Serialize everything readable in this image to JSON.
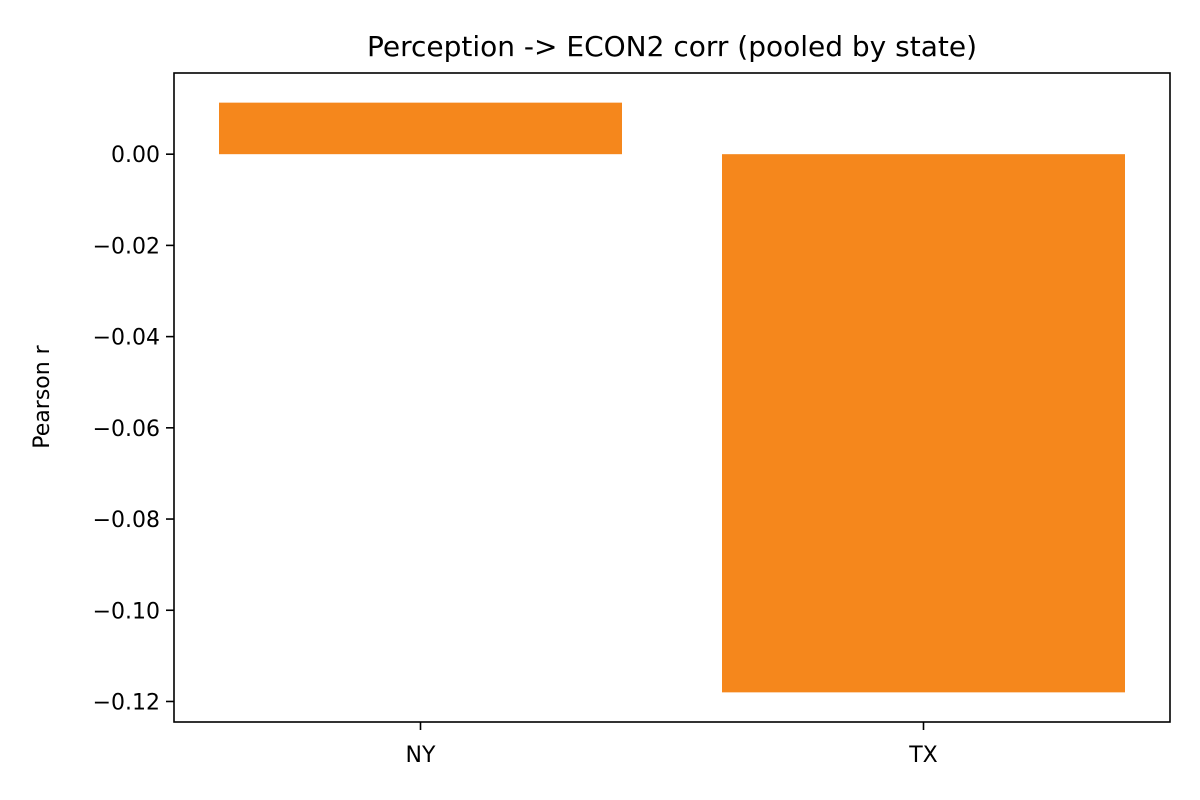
{
  "chart_data": {
    "type": "bar",
    "title": "Perception -> ECON2 corr (pooled by state)",
    "xlabel": "",
    "ylabel": "Pearson r",
    "categories": [
      "NY",
      "TX"
    ],
    "values": [
      0.0113,
      -0.118
    ],
    "ylim": [
      -0.1245,
      0.0178
    ],
    "yticks": [
      0.0,
      -0.02,
      -0.04,
      -0.06,
      -0.08,
      -0.1,
      -0.12
    ],
    "ytick_labels": [
      "0.00",
      "−0.02",
      "−0.04",
      "−0.06",
      "−0.08",
      "−0.10",
      "−0.12"
    ],
    "bar_color": "#f5871c",
    "grid": false,
    "legend": "none"
  }
}
